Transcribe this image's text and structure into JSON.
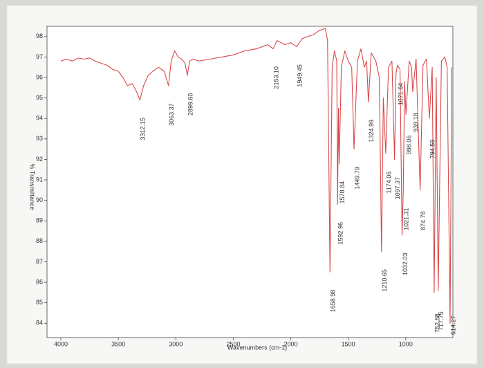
{
  "chart_data": {
    "type": "line",
    "x_label": "Wavenumbers (cm-1)",
    "y_label": "% Transmittance",
    "xlim": [
      4120,
      590
    ],
    "ylim": [
      83.3,
      98.5
    ],
    "xticks": [
      4000,
      3500,
      3000,
      2500,
      2000,
      1500,
      1000
    ],
    "yticks": [
      84,
      85,
      86,
      87,
      88,
      89,
      90,
      91,
      92,
      93,
      94,
      95,
      96,
      97,
      98
    ],
    "grid": false,
    "x": [
      4000,
      3950,
      3900,
      3850,
      3800,
      3750,
      3700,
      3650,
      3600,
      3550,
      3500,
      3460,
      3420,
      3380,
      3340,
      3312.15,
      3280,
      3240,
      3200,
      3150,
      3100,
      3063.37,
      3040,
      3010,
      2980,
      2950,
      2920,
      2899.6,
      2880,
      2850,
      2800,
      2700,
      2600,
      2500,
      2400,
      2300,
      2250,
      2200,
      2153.1,
      2120,
      2050,
      2000,
      1949.45,
      1900,
      1850,
      1800,
      1750,
      1700,
      1680,
      1658.98,
      1640,
      1620,
      1600,
      1592.96,
      1585,
      1578.84,
      1560,
      1530,
      1500,
      1470,
      1449.79,
      1420,
      1390,
      1360,
      1340,
      1324.99,
      1300,
      1260,
      1230,
      1210.65,
      1195,
      1174.06,
      1150,
      1120,
      1097.37,
      1085,
      1071.64,
      1050,
      1032.03,
      1021.31,
      1010,
      998.06,
      970,
      950,
      939.18,
      910,
      874.78,
      850,
      820,
      794.59,
      770,
      752.88,
      735,
      717.75,
      690,
      660,
      640,
      614.27,
      600
    ],
    "series": [
      {
        "color": "#d9484a",
        "values": [
          96.8,
          96.9,
          96.8,
          96.95,
          96.9,
          96.95,
          96.8,
          96.7,
          96.6,
          96.4,
          96.3,
          96.0,
          95.6,
          95.7,
          95.3,
          94.9,
          95.6,
          96.1,
          96.3,
          96.5,
          96.3,
          95.6,
          96.8,
          97.3,
          97.0,
          96.9,
          96.7,
          96.1,
          96.8,
          96.9,
          96.8,
          96.9,
          97.0,
          97.1,
          97.3,
          97.4,
          97.5,
          97.6,
          97.4,
          97.8,
          97.6,
          97.7,
          97.5,
          97.9,
          98.0,
          98.1,
          98.3,
          98.4,
          97.8,
          86.5,
          96.5,
          97.3,
          96.8,
          89.8,
          94.5,
          91.8,
          96.5,
          97.3,
          96.8,
          96.5,
          92.5,
          96.8,
          97.4,
          96.5,
          96.8,
          94.8,
          97.2,
          96.8,
          96.0,
          87.5,
          95.0,
          92.3,
          96.5,
          96.8,
          92.0,
          96.2,
          96.6,
          96.4,
          88.3,
          90.5,
          95.8,
          94.2,
          96.8,
          96.5,
          95.3,
          96.9,
          90.5,
          96.6,
          96.9,
          94.0,
          96.5,
          85.5,
          96.0,
          85.6,
          96.8,
          97.0,
          96.5,
          84.0,
          96.5
        ]
      }
    ],
    "annotations": [
      {
        "x": 3312.15,
        "y": 94.9,
        "label": "3312.15"
      },
      {
        "x": 3063.37,
        "y": 95.6,
        "label": "3063.37"
      },
      {
        "x": 2899.6,
        "y": 96.1,
        "label": "2899.60"
      },
      {
        "x": 2153.1,
        "y": 97.4,
        "label": "2153.10"
      },
      {
        "x": 1949.45,
        "y": 97.5,
        "label": "1949.45"
      },
      {
        "x": 1658.98,
        "y": 86.5,
        "label": "1658.98"
      },
      {
        "x": 1592.96,
        "y": 89.8,
        "label": "1592.96"
      },
      {
        "x": 1578.84,
        "y": 91.8,
        "label": "1578.84"
      },
      {
        "x": 1449.79,
        "y": 92.5,
        "label": "1449.79"
      },
      {
        "x": 1324.99,
        "y": 94.8,
        "label": "1324.99"
      },
      {
        "x": 1210.65,
        "y": 87.5,
        "label": "1210.65"
      },
      {
        "x": 1174.06,
        "y": 92.3,
        "label": "1174.06"
      },
      {
        "x": 1097.37,
        "y": 92.0,
        "label": "1097.37"
      },
      {
        "x": 1071.64,
        "y": 96.6,
        "label": "1071.64"
      },
      {
        "x": 1032.03,
        "y": 88.3,
        "label": "1032.03"
      },
      {
        "x": 1021.31,
        "y": 90.5,
        "label": "1021.31"
      },
      {
        "x": 998.06,
        "y": 94.2,
        "label": "998.06"
      },
      {
        "x": 939.18,
        "y": 95.3,
        "label": "939.18"
      },
      {
        "x": 874.78,
        "y": 90.5,
        "label": "874.78"
      },
      {
        "x": 794.59,
        "y": 94.0,
        "label": "794.59"
      },
      {
        "x": 752.88,
        "y": 85.5,
        "label": "752.88"
      },
      {
        "x": 717.75,
        "y": 85.6,
        "label": "717.75"
      },
      {
        "x": 614.27,
        "y": 84.0,
        "label": "614.27"
      }
    ]
  }
}
